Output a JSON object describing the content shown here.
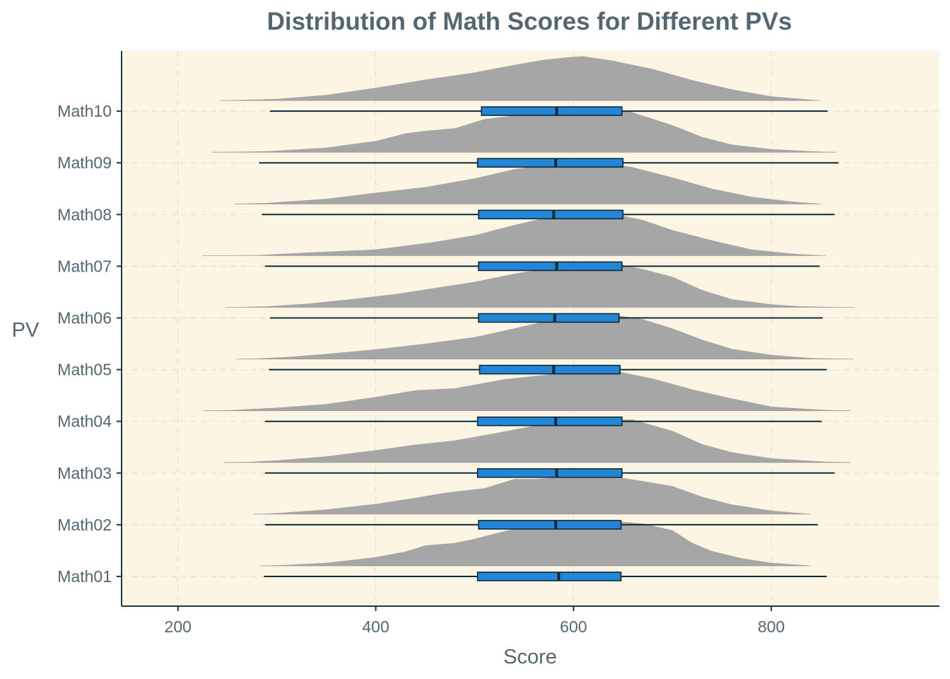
{
  "chart_data": {
    "type": "ridgeline-boxplot",
    "title": "Distribution of Math Scores for Different PVs",
    "xlabel": "Score",
    "ylabel": "PV",
    "xlim": [
      143,
      970
    ],
    "x_ticks": [
      200,
      400,
      600,
      800
    ],
    "grid": "dashed",
    "colors": {
      "panel_bg": "#fcf5e4",
      "density_fill": "#a6a6a6",
      "box_fill": "#2386d6",
      "box_stroke": "#0e2b3a",
      "whisker": "#0e2b3a",
      "axis_line": "#1e3a3a",
      "grid": "#e6dfcf",
      "text": "#556670"
    },
    "categories": [
      "Math01",
      "Math02",
      "Math03",
      "Math04",
      "Math05",
      "Math06",
      "Math07",
      "Math08",
      "Math09",
      "Math10"
    ],
    "series": [
      {
        "name": "Math01",
        "min": 287,
        "q1": 503,
        "median": 585,
        "q3": 648,
        "max": 856,
        "density": [
          [
            283,
            0
          ],
          [
            310,
            0.02
          ],
          [
            350,
            0.06
          ],
          [
            400,
            0.17
          ],
          [
            430,
            0.28
          ],
          [
            450,
            0.4
          ],
          [
            480,
            0.45
          ],
          [
            500,
            0.53
          ],
          [
            520,
            0.63
          ],
          [
            545,
            0.75
          ],
          [
            560,
            0.72
          ],
          [
            580,
            0.78
          ],
          [
            610,
            0.9
          ],
          [
            640,
            0.88
          ],
          [
            670,
            0.83
          ],
          [
            700,
            0.7
          ],
          [
            720,
            0.45
          ],
          [
            740,
            0.29
          ],
          [
            770,
            0.15
          ],
          [
            800,
            0.06
          ],
          [
            830,
            0.02
          ],
          [
            840,
            0
          ]
        ]
      },
      {
        "name": "Math02",
        "min": 288,
        "q1": 504,
        "median": 582,
        "q3": 648,
        "max": 847,
        "density": [
          [
            276,
            0
          ],
          [
            300,
            0.02
          ],
          [
            350,
            0.09
          ],
          [
            400,
            0.2
          ],
          [
            440,
            0.32
          ],
          [
            470,
            0.42
          ],
          [
            510,
            0.51
          ],
          [
            540,
            0.69
          ],
          [
            560,
            0.69
          ],
          [
            600,
            0.74
          ],
          [
            640,
            0.74
          ],
          [
            670,
            0.65
          ],
          [
            700,
            0.55
          ],
          [
            730,
            0.34
          ],
          [
            760,
            0.19
          ],
          [
            800,
            0.07
          ],
          [
            830,
            0.02
          ],
          [
            840,
            0
          ]
        ]
      },
      {
        "name": "Math03",
        "min": 288,
        "q1": 503,
        "median": 583,
        "q3": 649,
        "max": 864,
        "density": [
          [
            246,
            0
          ],
          [
            270,
            0.01
          ],
          [
            300,
            0.04
          ],
          [
            350,
            0.12
          ],
          [
            400,
            0.24
          ],
          [
            440,
            0.35
          ],
          [
            480,
            0.43
          ],
          [
            520,
            0.57
          ],
          [
            560,
            0.72
          ],
          [
            600,
            0.79
          ],
          [
            630,
            0.84
          ],
          [
            660,
            0.84
          ],
          [
            700,
            0.62
          ],
          [
            730,
            0.36
          ],
          [
            760,
            0.2
          ],
          [
            800,
            0.08
          ],
          [
            850,
            0.02
          ],
          [
            880,
            0
          ]
        ]
      },
      {
        "name": "Math04",
        "min": 288,
        "q1": 503,
        "median": 582,
        "q3": 649,
        "max": 851,
        "density": [
          [
            226,
            0
          ],
          [
            250,
            0.01
          ],
          [
            300,
            0.06
          ],
          [
            350,
            0.13
          ],
          [
            400,
            0.27
          ],
          [
            440,
            0.4
          ],
          [
            480,
            0.44
          ],
          [
            530,
            0.62
          ],
          [
            580,
            0.72
          ],
          [
            610,
            0.83
          ],
          [
            640,
            0.79
          ],
          [
            680,
            0.63
          ],
          [
            720,
            0.42
          ],
          [
            760,
            0.24
          ],
          [
            800,
            0.08
          ],
          [
            850,
            0.02
          ],
          [
            880,
            0
          ]
        ]
      },
      {
        "name": "Math05",
        "min": 292,
        "q1": 505,
        "median": 580,
        "q3": 647,
        "max": 856,
        "density": [
          [
            259,
            0
          ],
          [
            280,
            0.01
          ],
          [
            310,
            0.04
          ],
          [
            350,
            0.1
          ],
          [
            400,
            0.19
          ],
          [
            450,
            0.3
          ],
          [
            500,
            0.43
          ],
          [
            540,
            0.6
          ],
          [
            580,
            0.78
          ],
          [
            610,
            0.87
          ],
          [
            640,
            0.87
          ],
          [
            670,
            0.78
          ],
          [
            700,
            0.6
          ],
          [
            730,
            0.38
          ],
          [
            760,
            0.2
          ],
          [
            800,
            0.08
          ],
          [
            840,
            0.02
          ],
          [
            883,
            0
          ]
        ]
      },
      {
        "name": "Math06",
        "min": 293,
        "q1": 504,
        "median": 581,
        "q3": 646,
        "max": 852,
        "density": [
          [
            248,
            0
          ],
          [
            290,
            0.02
          ],
          [
            330,
            0.07
          ],
          [
            380,
            0.17
          ],
          [
            420,
            0.26
          ],
          [
            460,
            0.38
          ],
          [
            500,
            0.5
          ],
          [
            540,
            0.66
          ],
          [
            580,
            0.79
          ],
          [
            610,
            0.88
          ],
          [
            640,
            0.87
          ],
          [
            670,
            0.75
          ],
          [
            700,
            0.6
          ],
          [
            730,
            0.34
          ],
          [
            760,
            0.16
          ],
          [
            800,
            0.06
          ],
          [
            830,
            0.02
          ],
          [
            884,
            0
          ]
        ]
      },
      {
        "name": "Math07",
        "min": 288,
        "q1": 504,
        "median": 583,
        "q3": 649,
        "max": 849,
        "density": [
          [
            225,
            0
          ],
          [
            280,
            0.01
          ],
          [
            330,
            0.06
          ],
          [
            400,
            0.12
          ],
          [
            460,
            0.27
          ],
          [
            500,
            0.4
          ],
          [
            540,
            0.6
          ],
          [
            580,
            0.78
          ],
          [
            610,
            0.86
          ],
          [
            640,
            0.82
          ],
          [
            670,
            0.7
          ],
          [
            700,
            0.5
          ],
          [
            740,
            0.3
          ],
          [
            780,
            0.12
          ],
          [
            820,
            0.04
          ],
          [
            855,
            0
          ]
        ]
      },
      {
        "name": "Math08",
        "min": 285,
        "q1": 504,
        "median": 580,
        "q3": 650,
        "max": 864,
        "density": [
          [
            257,
            0
          ],
          [
            290,
            0.02
          ],
          [
            350,
            0.1
          ],
          [
            400,
            0.22
          ],
          [
            450,
            0.33
          ],
          [
            500,
            0.5
          ],
          [
            540,
            0.68
          ],
          [
            570,
            0.77
          ],
          [
            600,
            0.85
          ],
          [
            630,
            0.82
          ],
          [
            660,
            0.72
          ],
          [
            700,
            0.52
          ],
          [
            740,
            0.3
          ],
          [
            780,
            0.14
          ],
          [
            820,
            0.05
          ],
          [
            850,
            0
          ]
        ]
      },
      {
        "name": "Math09",
        "min": 282,
        "q1": 503,
        "median": 582,
        "q3": 650,
        "max": 868,
        "density": [
          [
            235,
            0
          ],
          [
            290,
            0.02
          ],
          [
            350,
            0.09
          ],
          [
            400,
            0.22
          ],
          [
            430,
            0.37
          ],
          [
            450,
            0.42
          ],
          [
            480,
            0.47
          ],
          [
            510,
            0.65
          ],
          [
            540,
            0.72
          ],
          [
            560,
            0.78
          ],
          [
            590,
            0.8
          ],
          [
            630,
            0.88
          ],
          [
            660,
            0.78
          ],
          [
            700,
            0.53
          ],
          [
            730,
            0.3
          ],
          [
            760,
            0.15
          ],
          [
            800,
            0.06
          ],
          [
            840,
            0.02
          ],
          [
            865,
            0
          ]
        ]
      },
      {
        "name": "Math10",
        "min": 293,
        "q1": 507,
        "median": 583,
        "q3": 649,
        "max": 857,
        "density": [
          [
            242,
            0
          ],
          [
            300,
            0.03
          ],
          [
            350,
            0.11
          ],
          [
            400,
            0.25
          ],
          [
            450,
            0.41
          ],
          [
            500,
            0.55
          ],
          [
            540,
            0.7
          ],
          [
            570,
            0.8
          ],
          [
            600,
            0.86
          ],
          [
            610,
            0.87
          ],
          [
            640,
            0.78
          ],
          [
            680,
            0.62
          ],
          [
            720,
            0.4
          ],
          [
            760,
            0.22
          ],
          [
            800,
            0.08
          ],
          [
            850,
            0
          ]
        ]
      }
    ]
  }
}
